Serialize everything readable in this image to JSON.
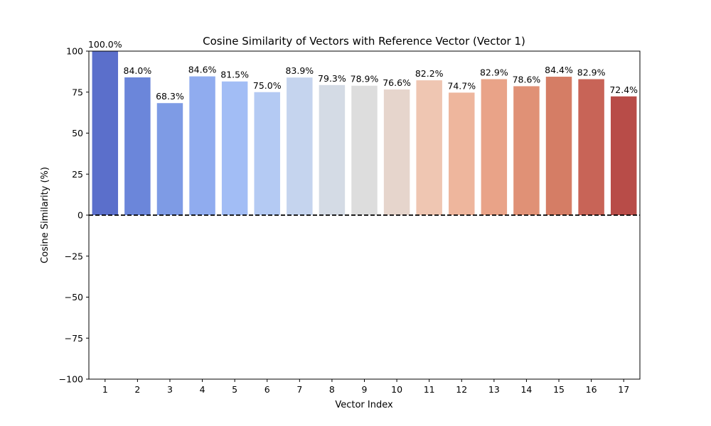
{
  "chart_data": {
    "type": "bar",
    "title": "Cosine Similarity of Vectors with Reference Vector (Vector 1)",
    "xlabel": "Vector Index",
    "ylabel": "Cosine Similarity (%)",
    "categories": [
      "1",
      "2",
      "3",
      "4",
      "5",
      "6",
      "7",
      "8",
      "9",
      "10",
      "11",
      "12",
      "13",
      "14",
      "15",
      "16",
      "17"
    ],
    "values": [
      100.0,
      84.0,
      68.3,
      84.6,
      81.5,
      75.0,
      83.9,
      79.3,
      78.9,
      76.6,
      82.2,
      74.7,
      82.9,
      78.6,
      84.4,
      82.9,
      72.4
    ],
    "data_labels": [
      "100.0%",
      "84.0%",
      "68.3%",
      "84.6%",
      "81.5%",
      "75.0%",
      "83.9%",
      "79.3%",
      "78.9%",
      "76.6%",
      "82.2%",
      "74.7%",
      "82.9%",
      "78.6%",
      "84.4%",
      "82.9%",
      "72.4%"
    ],
    "ylim": [
      -100,
      100
    ],
    "yticks": [
      -100,
      -75,
      -50,
      -25,
      0,
      25,
      50,
      75,
      100
    ],
    "ytick_labels": [
      "−100",
      "−75",
      "−50",
      "−25",
      "0",
      "25",
      "50",
      "75",
      "100"
    ],
    "reference_line": {
      "y": 0,
      "style": "dashed",
      "color": "#000000"
    },
    "grid": false,
    "legend": false,
    "colors": [
      "#5b6fcb",
      "#6b86da",
      "#7e9be5",
      "#90acef",
      "#a2bdf5",
      "#b4caf3",
      "#c5d4ee",
      "#d4dbe5",
      "#dddddd",
      "#e6d5cc",
      "#efc6b2",
      "#eeb69d",
      "#e9a388",
      "#e09176",
      "#d57d65",
      "#c86457",
      "#b84c48"
    ]
  }
}
